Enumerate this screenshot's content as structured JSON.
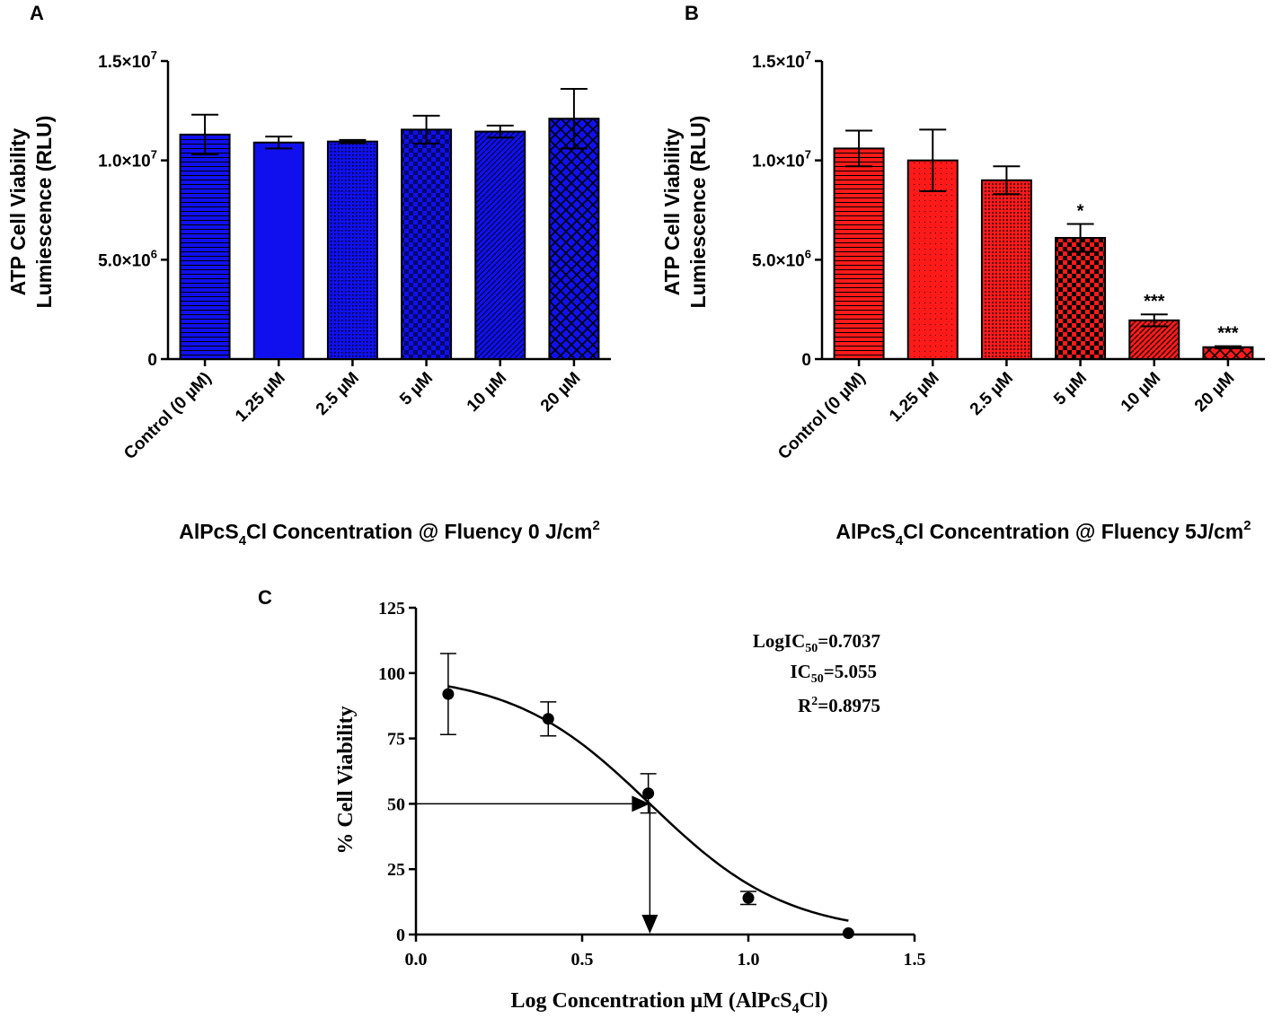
{
  "colors": {
    "panel_a": "#1010ee",
    "panel_b": "#ff1a1a",
    "ink": "#000000"
  },
  "chart_data": [
    {
      "panel": "A",
      "type": "bar",
      "ylabel_line1": "ATP Cell Viability",
      "ylabel_line2": "Lumiescence (RLU)",
      "xlabel_prefix": "AlPcS",
      "xlabel_sub": "4",
      "xlabel_mid": "Cl Concentration @ Fluency 0 J/cm",
      "xlabel_sup": "2",
      "categories": [
        "Control (0 µM)",
        "1.25 µM",
        "2.5 µM",
        "5 µM",
        "10 µM",
        "20 µM"
      ],
      "values": [
        11300000,
        10900000,
        10950000,
        11550000,
        11450000,
        12100000
      ],
      "errors": [
        1000000,
        300000,
        80000,
        700000,
        300000,
        1500000
      ],
      "patterns": [
        "hlines",
        "solid",
        "dots",
        "checker",
        "diag",
        "cross"
      ],
      "ylim": [
        0,
        15000000
      ],
      "ticks": [
        {
          "value": 0,
          "base": "0",
          "exp": ""
        },
        {
          "value": 5000000,
          "base": "5.0×10",
          "exp": "6"
        },
        {
          "value": 10000000,
          "base": "1.0×10",
          "exp": "7"
        },
        {
          "value": 15000000,
          "base": "1.5×10",
          "exp": "7"
        }
      ],
      "significance": [
        "",
        "",
        "",
        "",
        "",
        ""
      ]
    },
    {
      "panel": "B",
      "type": "bar",
      "ylabel_line1": "ATP Cell Viability",
      "ylabel_line2": "Lumiescence (RLU)",
      "xlabel_prefix": "AlPcS",
      "xlabel_sub": "4",
      "xlabel_mid": "Cl Concentration @ Fluency 5J/cm",
      "xlabel_sup": "2",
      "categories": [
        "Control (0 µM)",
        "1.25 µM",
        "2.5 µM",
        "5 µM",
        "10 µM",
        "20 µM"
      ],
      "values": [
        10600000,
        10000000,
        9000000,
        6100000,
        1950000,
        600000
      ],
      "errors": [
        900000,
        1550000,
        700000,
        700000,
        300000,
        50000
      ],
      "patterns": [
        "hlines",
        "sparse-dots",
        "dots",
        "checker",
        "diag",
        "cross"
      ],
      "ylim": [
        0,
        15000000
      ],
      "ticks": [
        {
          "value": 0,
          "base": "0",
          "exp": ""
        },
        {
          "value": 5000000,
          "base": "5.0×10",
          "exp": "6"
        },
        {
          "value": 10000000,
          "base": "1.0×10",
          "exp": "7"
        },
        {
          "value": 15000000,
          "base": "1.5×10",
          "exp": "7"
        }
      ],
      "significance": [
        "",
        "",
        "",
        "*",
        "***",
        "***"
      ]
    },
    {
      "panel": "C",
      "type": "scatter",
      "ylabel": "% Cell Viability",
      "xlabel_prefix": "Log Concentration µM (AlPcS",
      "xlabel_sub": "4",
      "xlabel_suffix": "Cl)",
      "x": [
        0.097,
        0.398,
        0.699,
        1.0,
        1.301
      ],
      "y": [
        92,
        82.5,
        54,
        14,
        0.5
      ],
      "yerr": [
        15.5,
        6.5,
        7.5,
        2.5,
        0.5
      ],
      "xlim": [
        0.0,
        1.5
      ],
      "ylim": [
        0,
        125
      ],
      "xticks": [
        "0.0",
        "0.5",
        "1.0",
        "1.5"
      ],
      "xtick_values": [
        0.0,
        0.5,
        1.0,
        1.5
      ],
      "yticks": [
        "0",
        "25",
        "50",
        "75",
        "100",
        "125"
      ],
      "ytick_values": [
        0,
        25,
        50,
        75,
        100,
        125
      ],
      "fit": {
        "model": "sigmoid",
        "top": 100,
        "bottom": 0,
        "log_ic50": 0.7037,
        "hill": -2.1
      },
      "ic50_marker": {
        "x": 0.7037,
        "y": 50
      },
      "annotations": {
        "log_ic50_prefix": "LogIC",
        "log_ic50_sub": "50",
        "log_ic50_value": "=0.7037",
        "ic50_prefix": "IC",
        "ic50_sub": "50",
        "ic50_value": "=5.055",
        "r2_prefix": "R",
        "r2_sup": "2",
        "r2_value": "=0.8975"
      }
    }
  ],
  "panel_labels": {
    "a": "A",
    "b": "B",
    "c": "C"
  }
}
